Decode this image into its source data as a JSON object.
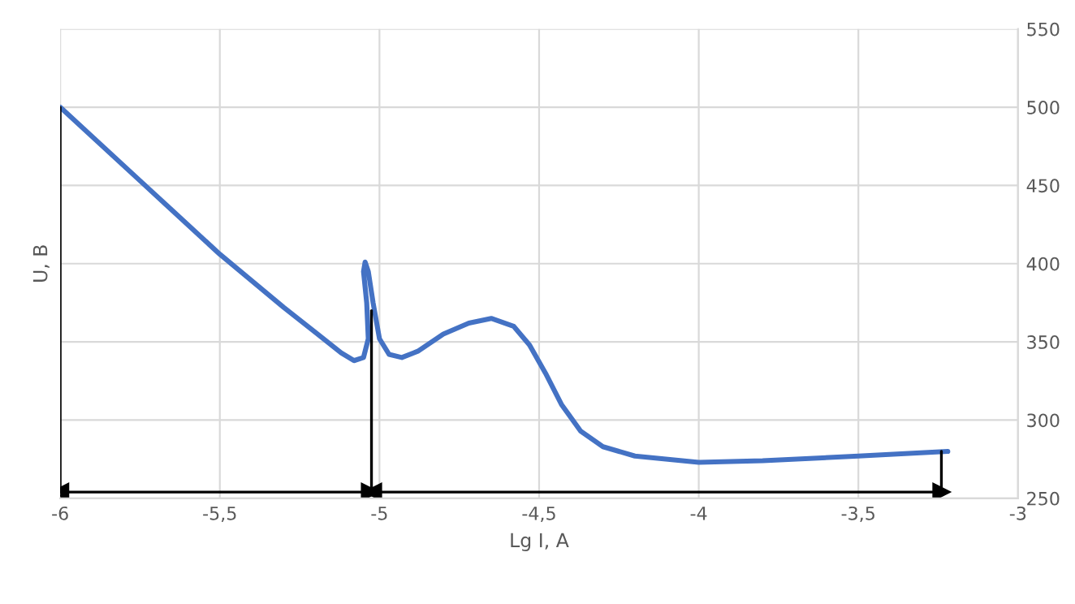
{
  "chart_data": {
    "type": "line",
    "xlabel": "Lg I, A",
    "ylabel": "U, B",
    "xlim": [
      -6,
      -3
    ],
    "ylim": [
      250,
      550
    ],
    "xticks": [
      -6,
      {
        "value": -5.5,
        "label": "-5,5"
      },
      -5,
      {
        "value": -4.5,
        "label": "-4,5"
      },
      -4,
      {
        "value": -3.5,
        "label": "-3,5"
      },
      -3
    ],
    "yticks": [
      250,
      300,
      350,
      400,
      450,
      500,
      550
    ],
    "grid": true,
    "legend": false,
    "series": [
      {
        "color": "#4472c4",
        "x": [
          -6,
          -5.75,
          -5.5,
          -5.3,
          -5.2,
          -5.12,
          -5.08,
          -5.05,
          -5.035,
          -5.04,
          -5.05,
          -5.045,
          -5.035,
          -5.02,
          -5.0,
          -4.97,
          -4.93,
          -4.88,
          -4.8,
          -4.72,
          -4.65,
          -4.58,
          -4.53,
          -4.48,
          -4.43,
          -4.37,
          -4.3,
          -4.2,
          -4.0,
          -3.8,
          -3.5,
          -3.22
        ],
        "values": [
          500,
          453,
          406,
          372,
          356,
          343,
          338,
          340,
          352,
          375,
          395,
          401,
          395,
          375,
          352,
          342,
          340,
          344,
          355,
          362,
          365,
          360,
          348,
          330,
          310,
          293,
          283,
          277,
          273,
          274,
          277,
          280
        ]
      },
      {
        "color": "#000000",
        "x": [
          -6,
          -6
        ],
        "values": [
          254,
          500
        ]
      },
      {
        "color": "#000000",
        "x": [
          -5.025,
          -5.025
        ],
        "values": [
          254,
          370
        ]
      },
      {
        "color": "#000000",
        "x": [
          -3.24,
          -3.24
        ],
        "values": [
          254,
          280
        ]
      },
      {
        "color": "#000000",
        "x": [
          -6,
          -5.03
        ],
        "values": [
          254,
          254
        ],
        "marker": "triangle"
      },
      {
        "color": "#000000",
        "x": [
          -5.02,
          -3.24
        ],
        "values": [
          254,
          254
        ],
        "marker": "triangle"
      }
    ]
  }
}
